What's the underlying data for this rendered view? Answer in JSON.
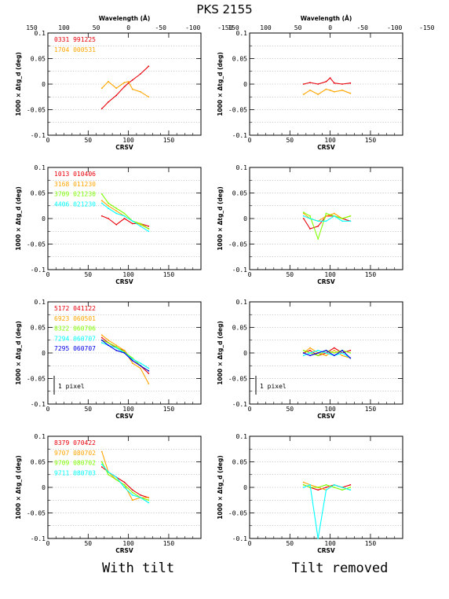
{
  "title": "PKS 2155",
  "bottom_labels": {
    "left": "With tilt",
    "right": "Tilt removed"
  },
  "axes": {
    "xlabel": "CRSV",
    "ylabel": "1000 × Δtg_d (deg)",
    "top_label": "Wavelength (Å)",
    "xlim": [
      0,
      190
    ],
    "ylim": [
      -0.1,
      0.1
    ],
    "x_ticks": [
      "0",
      "50",
      "100",
      "150"
    ],
    "y_ticks": [
      "0.1",
      "0.05",
      "0",
      "-0.05",
      "-0.1"
    ],
    "top_ticks": [
      "150",
      "100",
      "50",
      "0",
      "-50",
      "-100",
      "-150"
    ],
    "grid": "horizontal dotted"
  },
  "scale_label": "1 pixel",
  "rows": [
    {
      "legend": [
        {
          "text": "0331 991225",
          "color": "#e8000b"
        },
        {
          "text": "1704 000531",
          "color": "#ffa500"
        }
      ]
    },
    {
      "legend": [
        {
          "text": "1013 010406",
          "color": "#e8000b"
        },
        {
          "text": "3168 011230",
          "color": "#ffa500"
        },
        {
          "text": "3709 021230",
          "color": "#7fff00"
        },
        {
          "text": "4406 021230",
          "color": "#00ffff"
        }
      ]
    },
    {
      "legend": [
        {
          "text": "5172 041122",
          "color": "#e8000b"
        },
        {
          "text": "6923 060501",
          "color": "#ffa500"
        },
        {
          "text": "8322 060706",
          "color": "#7fff00"
        },
        {
          "text": "7294 060707",
          "color": "#00ffff"
        },
        {
          "text": "7295 060707",
          "color": "#0000e6"
        }
      ]
    },
    {
      "legend": [
        {
          "text": "8379 070422",
          "color": "#e8000b"
        },
        {
          "text": "9707 080702",
          "color": "#ffa500"
        },
        {
          "text": "9709 080702",
          "color": "#7fff00"
        },
        {
          "text": "9711 080703",
          "color": "#00ffff"
        }
      ]
    }
  ],
  "chart_data": {
    "type": "line",
    "x_range_of_series": [
      67,
      125
    ],
    "panels": [
      {
        "row": 1,
        "column": "With tilt",
        "series": [
          {
            "name": "0331 991225",
            "color": "#e8000b",
            "x": [
              67,
              75,
              85,
              95,
              100,
              105,
              115,
              125
            ],
            "y": [
              -0.048,
              -0.035,
              -0.022,
              -0.005,
              0.002,
              0.008,
              0.02,
              0.035
            ]
          },
          {
            "name": "1704 000531",
            "color": "#ffa500",
            "x": [
              67,
              75,
              85,
              95,
              100,
              105,
              115,
              125
            ],
            "y": [
              -0.008,
              0.005,
              -0.008,
              0.003,
              0.005,
              -0.01,
              -0.015,
              -0.025
            ]
          }
        ]
      },
      {
        "row": 1,
        "column": "Tilt removed",
        "series": [
          {
            "name": "0331 991225",
            "color": "#e8000b",
            "x": [
              67,
              75,
              85,
              95,
              100,
              105,
              115,
              125
            ],
            "y": [
              0.0,
              0.003,
              0.0,
              0.005,
              0.012,
              0.002,
              0.0,
              0.002
            ]
          },
          {
            "name": "1704 000531",
            "color": "#ffa500",
            "x": [
              67,
              75,
              85,
              95,
              100,
              105,
              115,
              125
            ],
            "y": [
              -0.02,
              -0.012,
              -0.02,
              -0.01,
              -0.012,
              -0.015,
              -0.012,
              -0.018
            ]
          }
        ]
      },
      {
        "row": 2,
        "column": "With tilt",
        "series": [
          {
            "name": "1013 010406",
            "color": "#e8000b",
            "x": [
              67,
              75,
              85,
              95,
              105,
              115,
              125
            ],
            "y": [
              0.005,
              0.0,
              -0.012,
              0.0,
              -0.01,
              -0.01,
              -0.015
            ]
          },
          {
            "name": "3168 011230",
            "color": "#ffa500",
            "x": [
              67,
              75,
              85,
              95,
              105,
              115,
              125
            ],
            "y": [
              0.035,
              0.025,
              0.015,
              0.005,
              -0.005,
              -0.012,
              -0.02
            ]
          },
          {
            "name": "3709 021230",
            "color": "#7fff00",
            "x": [
              67,
              75,
              85,
              95,
              105,
              115,
              125
            ],
            "y": [
              0.048,
              0.03,
              0.02,
              0.01,
              -0.005,
              -0.01,
              -0.02
            ]
          },
          {
            "name": "4406 021230",
            "color": "#00ffff",
            "x": [
              67,
              75,
              85,
              95,
              105,
              115,
              125
            ],
            "y": [
              0.03,
              0.02,
              0.01,
              0.005,
              -0.005,
              -0.015,
              -0.025
            ]
          }
        ]
      },
      {
        "row": 2,
        "column": "Tilt removed",
        "series": [
          {
            "name": "1013 010406",
            "color": "#e8000b",
            "x": [
              67,
              75,
              85,
              95,
              105,
              115,
              125
            ],
            "y": [
              0.0,
              -0.02,
              -0.015,
              0.005,
              0.005,
              0.0,
              -0.005
            ]
          },
          {
            "name": "3168 011230",
            "color": "#ffa500",
            "x": [
              67,
              75,
              85,
              95,
              105,
              115,
              125
            ],
            "y": [
              0.01,
              0.0,
              -0.005,
              0.005,
              0.01,
              0.0,
              0.005
            ]
          },
          {
            "name": "3709 021230",
            "color": "#7fff00",
            "x": [
              67,
              75,
              85,
              95,
              105,
              115,
              125
            ],
            "y": [
              0.012,
              0.005,
              -0.04,
              0.01,
              0.005,
              0.0,
              0.005
            ]
          },
          {
            "name": "4406 021230",
            "color": "#00ffff",
            "x": [
              67,
              75,
              85,
              95,
              105,
              115,
              125
            ],
            "y": [
              0.005,
              0.0,
              -0.005,
              -0.005,
              0.005,
              -0.005,
              -0.005
            ]
          }
        ]
      },
      {
        "row": 3,
        "column": "With tilt",
        "series": [
          {
            "name": "5172 041122",
            "color": "#e8000b",
            "x": [
              67,
              75,
              85,
              95,
              105,
              115,
              125
            ],
            "y": [
              0.03,
              0.02,
              0.01,
              0.005,
              -0.015,
              -0.025,
              -0.04
            ]
          },
          {
            "name": "6923 060501",
            "color": "#ffa500",
            "x": [
              67,
              75,
              85,
              95,
              105,
              115,
              125
            ],
            "y": [
              0.035,
              0.025,
              0.015,
              0.005,
              -0.02,
              -0.03,
              -0.06
            ]
          },
          {
            "name": "8322 060706",
            "color": "#7fff00",
            "x": [
              67,
              75,
              85,
              95,
              105,
              115,
              125
            ],
            "y": [
              0.025,
              0.02,
              0.012,
              0.002,
              -0.01,
              -0.025,
              -0.035
            ]
          },
          {
            "name": "7294 060707",
            "color": "#00ffff",
            "x": [
              67,
              75,
              85,
              95,
              105,
              115,
              125
            ],
            "y": [
              0.02,
              0.015,
              0.01,
              0.0,
              -0.012,
              -0.02,
              -0.03
            ]
          },
          {
            "name": "7295 060707",
            "color": "#0000e6",
            "x": [
              67,
              75,
              85,
              95,
              105,
              115,
              125
            ],
            "y": [
              0.025,
              0.015,
              0.005,
              0.0,
              -0.015,
              -0.025,
              -0.035
            ]
          }
        ]
      },
      {
        "row": 3,
        "column": "Tilt removed",
        "series": [
          {
            "name": "5172 041122",
            "color": "#e8000b",
            "x": [
              67,
              75,
              85,
              95,
              105,
              115,
              125
            ],
            "y": [
              0.0,
              0.005,
              -0.005,
              0.0,
              0.01,
              0.0,
              0.005
            ]
          },
          {
            "name": "6923 060501",
            "color": "#ffa500",
            "x": [
              67,
              75,
              85,
              95,
              105,
              115,
              125
            ],
            "y": [
              0.0,
              0.01,
              0.0,
              -0.005,
              0.005,
              -0.005,
              -0.01
            ]
          },
          {
            "name": "8322 060706",
            "color": "#7fff00",
            "x": [
              67,
              75,
              85,
              95,
              105,
              115,
              125
            ],
            "y": [
              0.005,
              0.0,
              -0.005,
              0.005,
              0.0,
              0.005,
              0.0
            ]
          },
          {
            "name": "7294 060707",
            "color": "#00ffff",
            "x": [
              67,
              75,
              85,
              95,
              105,
              115,
              125
            ],
            "y": [
              -0.005,
              0.0,
              0.005,
              0.0,
              -0.005,
              0.0,
              -0.01
            ]
          },
          {
            "name": "7295 060707",
            "color": "#0000e6",
            "x": [
              67,
              75,
              85,
              95,
              105,
              115,
              125
            ],
            "y": [
              0.0,
              -0.005,
              0.0,
              0.005,
              -0.005,
              0.005,
              -0.01
            ]
          }
        ]
      },
      {
        "row": 4,
        "column": "With tilt",
        "series": [
          {
            "name": "8379 070422",
            "color": "#e8000b",
            "x": [
              67,
              75,
              85,
              95,
              105,
              115,
              125
            ],
            "y": [
              0.04,
              0.03,
              0.02,
              0.01,
              -0.005,
              -0.015,
              -0.02
            ]
          },
          {
            "name": "9707 080702",
            "color": "#ffa500",
            "x": [
              67,
              75,
              85,
              95,
              105,
              115,
              125
            ],
            "y": [
              0.07,
              0.03,
              0.015,
              0.005,
              -0.025,
              -0.02,
              -0.02
            ]
          },
          {
            "name": "9709 080702",
            "color": "#7fff00",
            "x": [
              67,
              75,
              85,
              95,
              105,
              115,
              125
            ],
            "y": [
              0.05,
              0.025,
              0.015,
              0.005,
              -0.01,
              -0.02,
              -0.025
            ]
          },
          {
            "name": "9711 080703",
            "color": "#00ffff",
            "x": [
              67,
              75,
              85,
              95,
              105,
              115,
              125
            ],
            "y": [
              0.045,
              0.03,
              0.02,
              0.0,
              -0.015,
              -0.02,
              -0.03
            ]
          }
        ]
      },
      {
        "row": 4,
        "column": "Tilt removed",
        "series": [
          {
            "name": "8379 070422",
            "color": "#e8000b",
            "x": [
              67,
              75,
              85,
              95,
              105,
              115,
              125
            ],
            "y": [
              0.005,
              0.0,
              -0.005,
              0.0,
              0.005,
              0.0,
              0.005
            ]
          },
          {
            "name": "9707 080702",
            "color": "#ffa500",
            "x": [
              67,
              75,
              85,
              95,
              105,
              115,
              125
            ],
            "y": [
              0.01,
              0.005,
              0.0,
              -0.005,
              0.005,
              0.0,
              -0.005
            ]
          },
          {
            "name": "9709 080702",
            "color": "#7fff00",
            "x": [
              67,
              75,
              85,
              95,
              105,
              115,
              125
            ],
            "y": [
              0.005,
              0.0,
              0.0,
              0.005,
              0.0,
              -0.005,
              0.0
            ]
          },
          {
            "name": "9711 080703",
            "color": "#00ffff",
            "x": [
              67,
              75,
              85,
              95,
              105,
              115,
              125
            ],
            "y": [
              0.0,
              0.005,
              -0.1,
              -0.005,
              0.005,
              0.0,
              -0.005
            ]
          }
        ]
      }
    ]
  }
}
